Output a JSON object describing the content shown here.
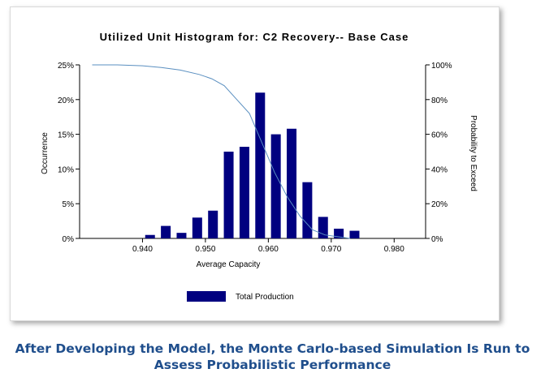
{
  "caption": {
    "line1": "After Developing the Model, the Monte Carlo-based Simulation Is Run to",
    "line2": "Assess Probabilistic Performance"
  },
  "chart_data": {
    "type": "bar",
    "title": "Utilized Unit Histogram for: C2 Recovery-- Base Case",
    "xlabel": "Average Capacity",
    "ylabel": "Occurrence",
    "y2label": "Probability to Exceed",
    "xlim": [
      0.93,
      0.985
    ],
    "ylim": [
      0,
      25
    ],
    "y2lim": [
      0,
      100
    ],
    "xticks": [
      "0.940",
      "0.950",
      "0.960",
      "0.970",
      "0.980"
    ],
    "yticks": [
      "0%",
      "5%",
      "10%",
      "15%",
      "20%",
      "25%"
    ],
    "y2ticks": [
      "0%",
      "20%",
      "40%",
      "60%",
      "80%",
      "100%"
    ],
    "grid": false,
    "legend": "bottom-center",
    "colors": {
      "bar": "#000080",
      "line": "#5a8fc0"
    },
    "series": [
      {
        "name": "Total Production",
        "type": "bar",
        "x": [
          0.9412,
          0.9437,
          0.9462,
          0.9487,
          0.9512,
          0.9537,
          0.9562,
          0.9587,
          0.9612,
          0.9637,
          0.9662,
          0.9687,
          0.9712,
          0.9737
        ],
        "values": [
          0.5,
          1.8,
          0.8,
          3.0,
          4.0,
          12.5,
          13.2,
          21.0,
          15.0,
          15.8,
          8.1,
          3.1,
          1.4,
          1.1
        ]
      },
      {
        "type": "line",
        "axis": "right",
        "x": [
          0.932,
          0.936,
          0.94,
          0.943,
          0.946,
          0.949,
          0.951,
          0.953,
          0.955,
          0.957,
          0.959,
          0.961,
          0.963,
          0.965,
          0.967,
          0.969,
          0.971,
          0.973
        ],
        "values": [
          100,
          100,
          99.5,
          98.5,
          97,
          94.5,
          92,
          88,
          80,
          72,
          55,
          38,
          24,
          13,
          5,
          2,
          1,
          0
        ]
      }
    ]
  }
}
